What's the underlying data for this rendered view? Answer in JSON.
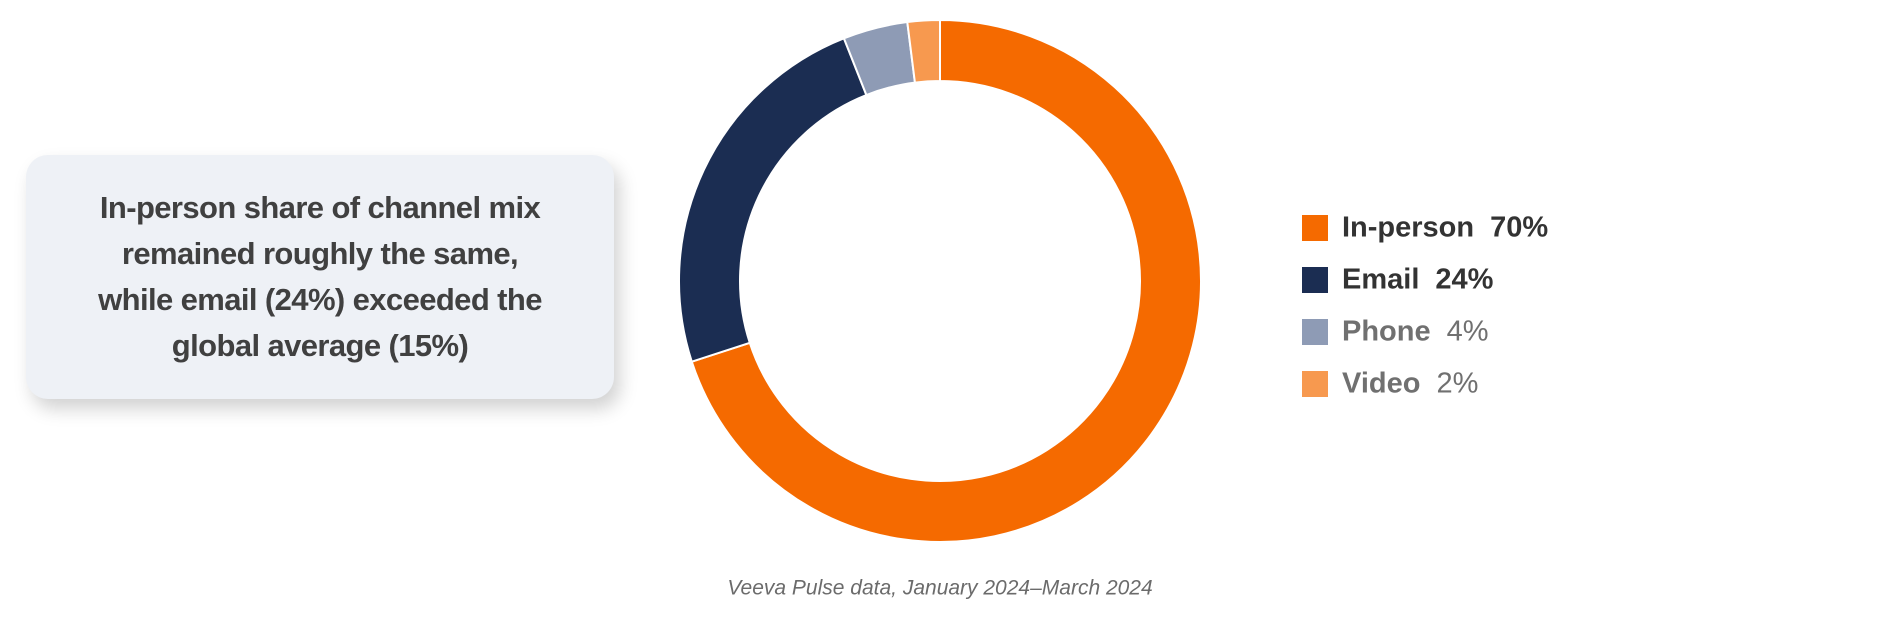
{
  "chart_data": {
    "type": "pie",
    "donut": true,
    "annotation": [
      "In-person share of channel mix",
      "remained roughly the same,",
      "while email (24%) exceeded the",
      "global average (15%)"
    ],
    "categories": [
      "In-person",
      "Email",
      "Phone",
      "Video"
    ],
    "values": [
      70,
      24,
      4,
      2
    ],
    "value_labels": [
      "70%",
      "24%",
      "4%",
      "2%"
    ],
    "colors": [
      "#f56a00",
      "#1b2d52",
      "#8e9bb5",
      "#f7994f"
    ],
    "caption": "Veeva Pulse data, January 2024–March 2024"
  }
}
